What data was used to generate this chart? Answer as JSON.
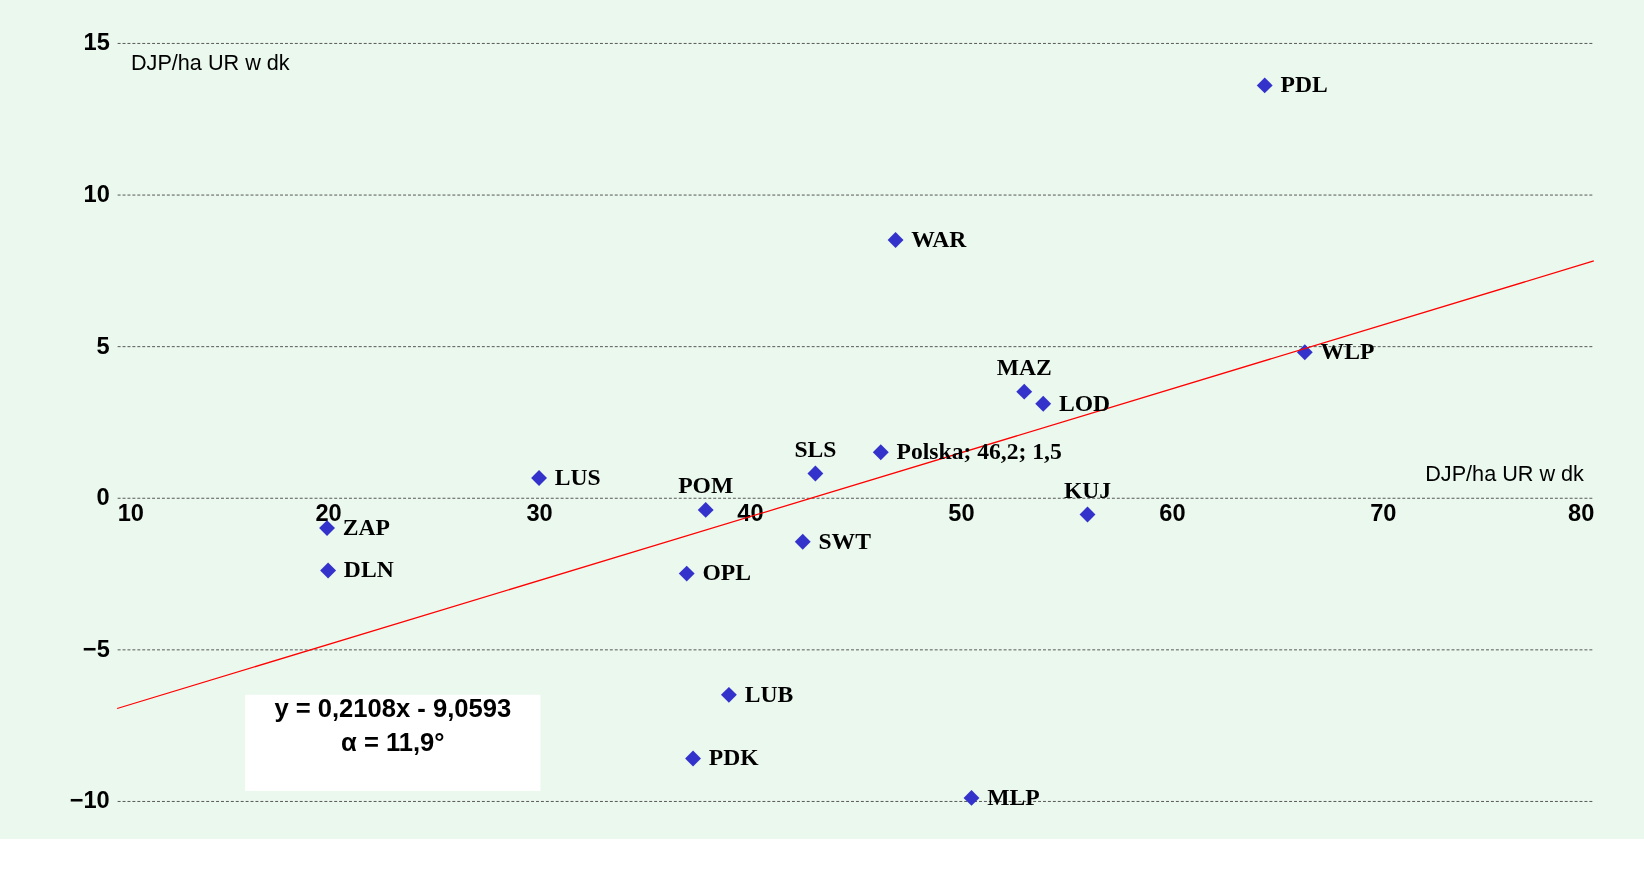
{
  "chart_data": {
    "type": "scatter",
    "xlabel": "DJP/ha UR w dk",
    "ylabel": "DJP/ha UR w dk",
    "xlim": [
      10,
      80
    ],
    "xticks": [
      10,
      20,
      30,
      40,
      50,
      60,
      70,
      80
    ],
    "ylim": [
      -10,
      15
    ],
    "yticks": [
      -10,
      -5,
      0,
      5,
      10,
      15
    ],
    "grid": "y",
    "marker": "diamond",
    "series": [
      {
        "color": "#3333cc",
        "x": [
          64.4,
          46.9,
          66.3,
          53.0,
          53.9,
          46.2,
          30.0,
          43.1,
          37.9,
          56.0,
          19.95,
          20.0,
          42.5,
          37.0,
          39.0,
          37.3,
          50.5
        ],
        "values": [
          13.6,
          8.5,
          4.8,
          3.5,
          3.1,
          1.5,
          0.65,
          0.8,
          -0.4,
          -0.55,
          -1.0,
          -2.4,
          -1.45,
          -2.5,
          -6.5,
          -8.6,
          -9.9
        ]
      },
      {
        "type": "line",
        "marker": "none",
        "color": "#ff0000",
        "x": [
          10,
          80
        ],
        "values": [
          -6.95,
          7.81
        ]
      }
    ],
    "annotations": [
      {
        "text": "PDL",
        "x": 64.4,
        "y": 13.6
      },
      {
        "text": "WAR",
        "x": 46.9,
        "y": 8.5
      },
      {
        "text": "WLP",
        "x": 66.3,
        "y": 4.8
      },
      {
        "text": "MAZ",
        "x": 53.0,
        "y": 3.5
      },
      {
        "text": "LOD",
        "x": 53.9,
        "y": 3.1
      },
      {
        "text": "Polska;  46,2; 1,5",
        "x": 46.2,
        "y": 1.5
      },
      {
        "text": "LUS",
        "x": 30.0,
        "y": 0.65
      },
      {
        "text": "SLS",
        "x": 43.1,
        "y": 0.8
      },
      {
        "text": "POM",
        "x": 37.9,
        "y": -0.4
      },
      {
        "text": "KUJ",
        "x": 56.0,
        "y": -0.55
      },
      {
        "text": "ZAP",
        "x": 19.95,
        "y": -1.0
      },
      {
        "text": "DLN",
        "x": 20.0,
        "y": -2.4
      },
      {
        "text": "SWT",
        "x": 42.5,
        "y": -1.45
      },
      {
        "text": "OPL",
        "x": 37.0,
        "y": -2.5
      },
      {
        "text": "LUB",
        "x": 39.0,
        "y": -6.5
      },
      {
        "text": "PDK",
        "x": 37.3,
        "y": -8.6
      },
      {
        "text": "MLP",
        "x": 50.5,
        "y": -9.9
      },
      "y = 0,2108x - 9,0593",
      "α = 11,9°"
    ]
  }
}
